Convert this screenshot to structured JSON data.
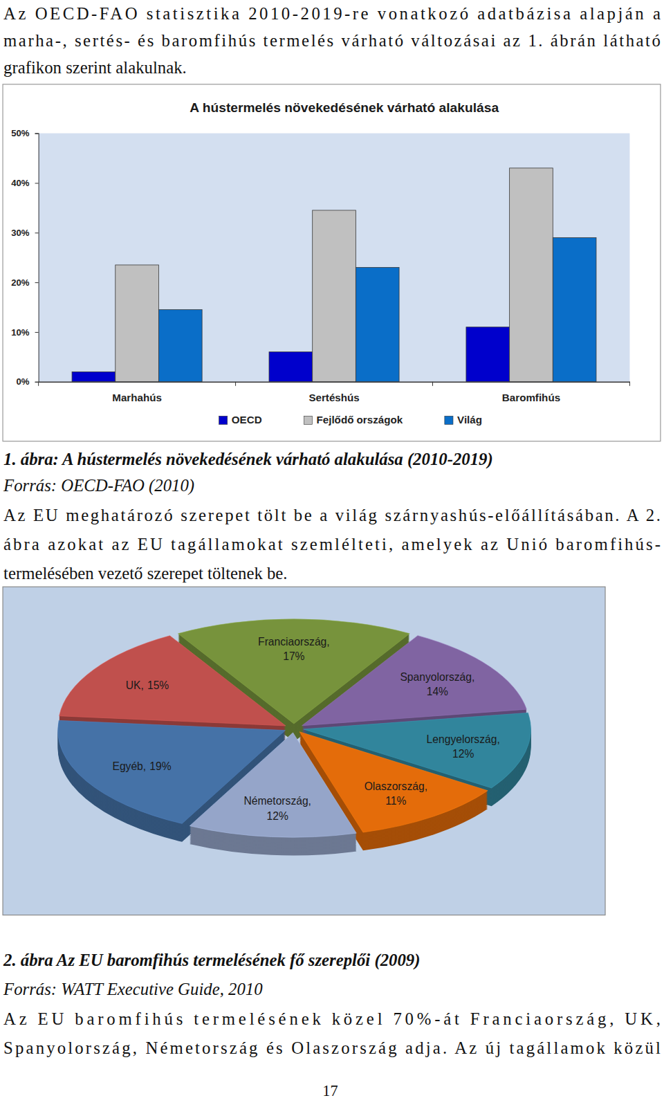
{
  "page": {
    "paragraph_1": [
      "Az OECD-FAO statisztika 2010-2019-re vonatkozó adatbázisa alapján a",
      "marha-, sertés- és baromfihús termelés várható változásai az 1. ábrán látható",
      "grafikon szerint alakulnak."
    ],
    "caption_1": "1. ábra: A hústermelés növekedésének várható alakulása (2010-2019)",
    "source_1": "Forrás: OECD-FAO (2010)",
    "paragraph_2": [
      "Az EU meghatározó szerepet tölt be a világ szárnyashús-előállításában. A 2.",
      "ábra azokat az EU tagállamokat szemlélteti, amelyek az Unió baromfihús-",
      "termelésében vezető szerepet töltenek be."
    ],
    "caption_2": "2. ábra Az EU baromfihús termelésének fő szereplői (2009)",
    "source_2": "Forrás: WATT Executive Guide, 2010",
    "paragraph_3": [
      "Az EU baromfihús termelésének közel 70%-át Franciaország, UK,",
      "Spanyolország, Németország és Olaszország adja. Az új tagállamok közül"
    ],
    "page_number": "17"
  },
  "chart_data": [
    {
      "type": "bar",
      "title": "A hústermelés növekedésének várható alakulása",
      "categories": [
        "Marhahús",
        "Sertéshús",
        "Baromfihús"
      ],
      "series": [
        {
          "name": "OECD",
          "color": "#0000cc",
          "values": [
            2,
            6,
            11
          ]
        },
        {
          "name": "Fejlődő országok",
          "color": "#c0c0c0",
          "values": [
            23.5,
            34.5,
            43
          ]
        },
        {
          "name": "Világ",
          "color": "#0a6ec8",
          "values": [
            14.5,
            23,
            29
          ]
        }
      ],
      "ylim": [
        0,
        50
      ],
      "yticks": [
        {
          "value": 0,
          "label": "0%"
        },
        {
          "value": 10,
          "label": "10%"
        },
        {
          "value": 20,
          "label": "20%"
        },
        {
          "value": 30,
          "label": "30%"
        },
        {
          "value": 40,
          "label": "40%"
        },
        {
          "value": 50,
          "label": "50%"
        }
      ],
      "grid": false,
      "legend": "bottom"
    },
    {
      "type": "pie",
      "categories": [
        "Franciaország,",
        "Spanyolország,",
        "Lengyelország,",
        "Olaszország,",
        "Németország,",
        "Egyéb,",
        "UK,"
      ],
      "values": [
        17,
        14,
        12,
        11,
        12,
        19,
        15
      ],
      "value_labels": [
        "17%",
        "14%",
        "12%",
        "11%",
        "12%",
        "19%",
        "15%"
      ],
      "colors": [
        "#77933c",
        "#8064a2",
        "#31859c",
        "#e46c0a",
        "#95a5c9",
        "#4572a7",
        "#c0504d"
      ],
      "data_labels": true
    }
  ]
}
